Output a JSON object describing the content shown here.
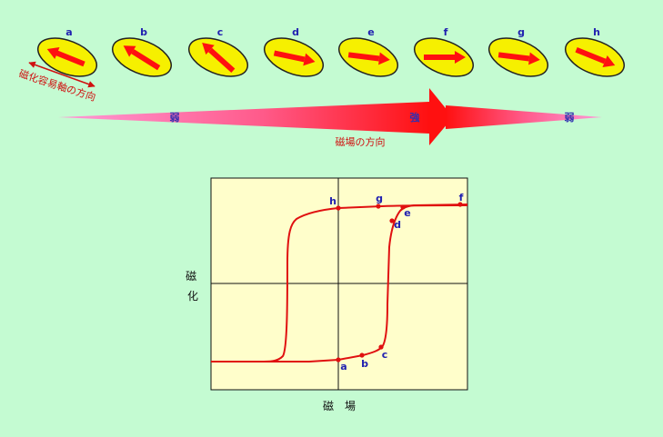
{
  "domains": {
    "magnets": {
      "labels": [
        "a",
        "b",
        "c",
        "d",
        "e",
        "f",
        "g",
        "h"
      ]
    }
  },
  "easy_axis_label": "磁化容易軸の方向",
  "field": {
    "direction_label": "磁場の方向",
    "weak_left": "弱",
    "strong": "強",
    "weak_right": "弱"
  },
  "graph": {
    "ylabel": "磁化",
    "xlabel": "磁　場",
    "points": {
      "a": "a",
      "b": "b",
      "c": "c",
      "d": "d",
      "e": "e",
      "f": "f",
      "g": "g",
      "h": "h"
    }
  },
  "colors": {
    "background": "#c4fbd2",
    "ellipse_fill": "#f6f000",
    "arrow": "#ff1010",
    "curve": "#e01010",
    "plot_bg": "#fffecb"
  }
}
